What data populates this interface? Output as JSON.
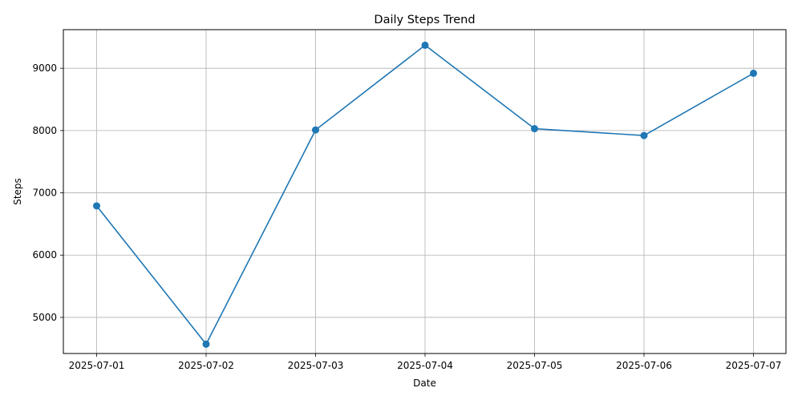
{
  "chart_data": {
    "type": "line",
    "title": "Daily Steps Trend",
    "xlabel": "Date",
    "ylabel": "Steps",
    "categories": [
      "2025-07-01",
      "2025-07-02",
      "2025-07-03",
      "2025-07-04",
      "2025-07-05",
      "2025-07-06",
      "2025-07-07"
    ],
    "series": [
      {
        "values": [
          6790,
          4570,
          8010,
          9370,
          8030,
          7920,
          8920
        ],
        "color": "#1f77b4",
        "marker": "circle"
      }
    ],
    "y_ticks": [
      5000,
      6000,
      7000,
      8000,
      9000
    ],
    "ylim": [
      4420,
      9620
    ],
    "grid": true,
    "legend": "none"
  }
}
